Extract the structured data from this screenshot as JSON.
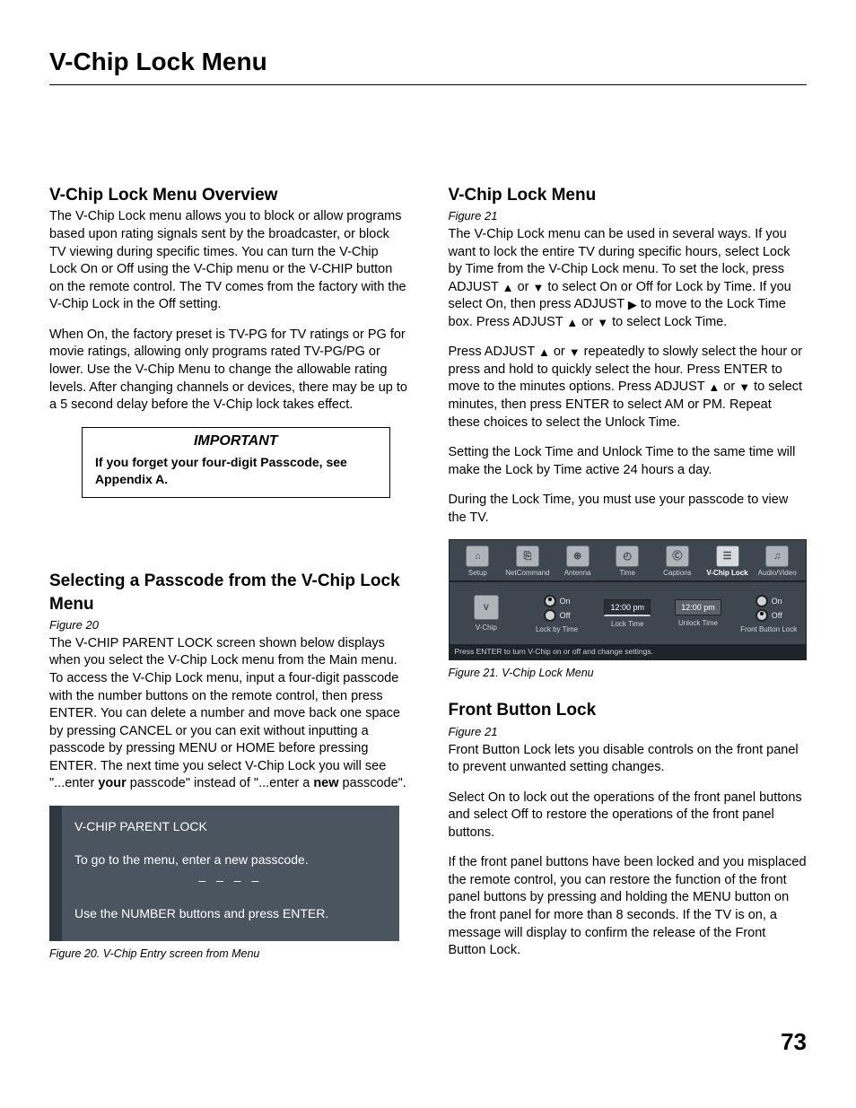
{
  "page_title": "V-Chip Lock Menu",
  "page_number": "73",
  "left": {
    "h_overview": "V-Chip Lock Menu Overview",
    "overview_p1": "The V-Chip Lock menu allows you to block or allow programs based upon rating signals sent by the broadcaster, or block TV viewing during specific times.  You can turn the V-Chip Lock On or Off using the V-Chip menu or the V-CHIP button on the remote control.  The TV comes from the factory with the V-Chip Lock in the Off setting.",
    "overview_p2": "When On, the factory preset is TV-PG for TV ratings or PG for movie ratings, allowing only programs rated TV-PG/PG or lower.  Use the V-Chip Menu to change the allowable rating levels.  After changing channels or devices, there may be up to a 5 second delay before the V-Chip lock takes effect.",
    "important_head": "IMPORTANT",
    "important_body": "If you forget your four-digit Passcode, see Appendix A.",
    "h_passcode": "Selecting a Passcode from the V-Chip Lock Menu",
    "fig20_ref": "Figure 20",
    "passcode_p_pre": "The V-CHIP PARENT LOCK screen shown below displays when you select the V-Chip Lock menu from the Main menu.  To access the V-Chip Lock menu, input a four-digit passcode with the number buttons on the remote control, then press ENTER.  You can delete a number and move back one space by pressing CANCEL or you can exit without inputting a passcode by pressing MENU or HOME before pressing ENTER. The next time you select V-Chip Lock you will see \"...enter ",
    "passcode_bold1": "your",
    "passcode_mid": " passcode\" instead of \"...enter a ",
    "passcode_bold2": "new",
    "passcode_post": " passcode\".",
    "parent_lock": {
      "title": "V-CHIP PARENT LOCK",
      "line1": "To go to the menu, enter a new passcode.",
      "dashes": "– – – –",
      "line2": "Use the NUMBER buttons and press ENTER."
    },
    "fig20_cap": "Figure 20. V-Chip Entry screen from Menu"
  },
  "right": {
    "h_menu": "V-Chip Lock Menu",
    "fig21_ref": "Figure 21",
    "menu_p1_a": "The V-Chip Lock menu can be used in several ways. If you want to lock the entire TV during specific hours, select Lock by Time from the V-Chip Lock menu.   To set the lock, press ADJUST ",
    "menu_p1_b": " or ",
    "menu_p1_c": " to select On or Off for Lock by Time.  If you select On, then press ADJUST ",
    "menu_p1_d": " to move to the Lock Time box.  Press ADJUST ",
    "menu_p1_e": " or ",
    "menu_p1_f": " to select Lock Time.",
    "menu_p2_a": "Press ADJUST ",
    "menu_p2_b": " or ",
    "menu_p2_c": "  repeatedly to slowly select the hour or press and hold to quickly select the hour.  Press ENTER to move to the minutes options.  Press ADJUST ",
    "menu_p2_d": " or ",
    "menu_p2_e": " to select minutes, then press ENTER to select AM or PM.  Repeat these choices to select the Unlock Time.",
    "menu_p3": "Setting the Lock Time and Unlock Time to the same time will make the Lock by Time active 24 hours a day.",
    "menu_p4": "During the Lock Time, you must use your passcode to view the TV.",
    "osd": {
      "tabs": [
        "Setup",
        "NetCommand",
        "Antenna",
        "Time",
        "Captions",
        "V-Chip Lock",
        "Audio/Video"
      ],
      "tab_glyph": [
        "⌂",
        "⎘",
        "⊕",
        "◴",
        "Ⓒ",
        "☰",
        "♫"
      ],
      "selected_tab": 5,
      "vchip_label": "V-Chip",
      "lock_by_time": "Lock by Time",
      "lock_time": "Lock Time",
      "unlock_time": "Unlock Time",
      "front_button": "Front Button Lock",
      "on": "On",
      "off": "Off",
      "time1": "12:00 pm",
      "time2": "12:00 pm",
      "footer": "Press ENTER to turn V-Chip on or off and change settings."
    },
    "fig21_cap": "Figure 21. V-Chip Lock Menu",
    "h_front": "Front Button Lock",
    "fig21b_ref": "Figure 21",
    "front_p1": "Front Button Lock lets you disable controls on the front panel to prevent unwanted setting changes.",
    "front_p2": "Select On to lock out the operations of the front panel buttons and select Off to restore the operations of the front panel buttons.",
    "front_p3": "If the front panel buttons have been locked and you misplaced the remote control, you can restore the function of the front panel buttons by pressing and holding the MENU button on the front panel for more than 8 seconds.  If the TV is on, a message will display to confirm the release of the Front Button Lock."
  },
  "glyph": {
    "up": "▲",
    "down": "▼",
    "right": "▶"
  }
}
